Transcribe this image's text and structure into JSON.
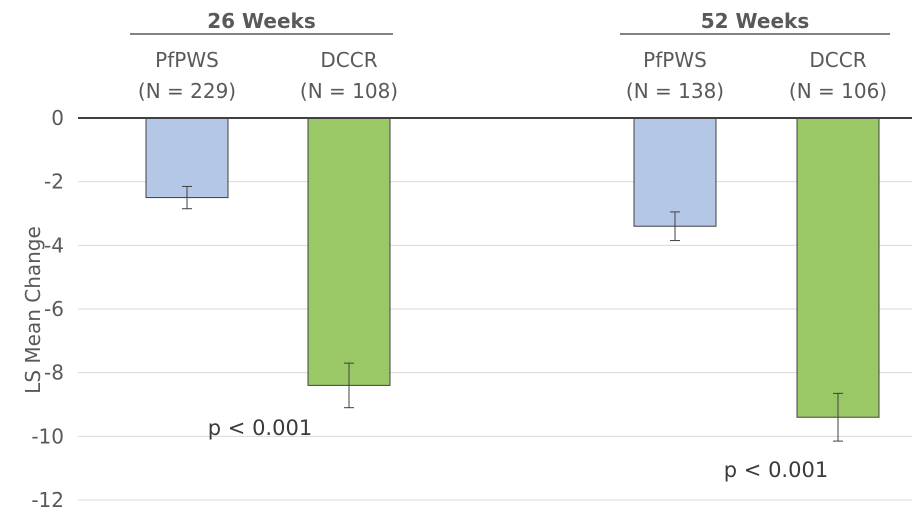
{
  "chart_data": {
    "type": "bar",
    "ylabel": "LS Mean Change",
    "ylim": [
      -12,
      0
    ],
    "yticks": [
      "0",
      "-2",
      "-4",
      "-6",
      "-8",
      "-10",
      "-12"
    ],
    "grid": true,
    "groups": [
      {
        "title": "26 Weeks",
        "pvalue": "p < 0.001",
        "bars": [
          {
            "name": "PfPWS",
            "n_label": "(N = 229)",
            "value": -2.5,
            "err_low": -2.85,
            "err_high": -2.15,
            "color": "#b4c7e7"
          },
          {
            "name": "DCCR",
            "n_label": "(N = 108)",
            "value": -8.4,
            "err_low": -9.1,
            "err_high": -7.7,
            "color": "#9ac866"
          }
        ]
      },
      {
        "title": "52 Weeks",
        "pvalue": "p < 0.001",
        "bars": [
          {
            "name": "PfPWS",
            "n_label": "(N = 138)",
            "value": -3.4,
            "err_low": -3.85,
            "err_high": -2.95,
            "color": "#b4c7e7"
          },
          {
            "name": "DCCR",
            "n_label": "(N = 106)",
            "value": -9.4,
            "err_low": -10.15,
            "err_high": -8.65,
            "color": "#9ac866"
          }
        ]
      }
    ]
  }
}
